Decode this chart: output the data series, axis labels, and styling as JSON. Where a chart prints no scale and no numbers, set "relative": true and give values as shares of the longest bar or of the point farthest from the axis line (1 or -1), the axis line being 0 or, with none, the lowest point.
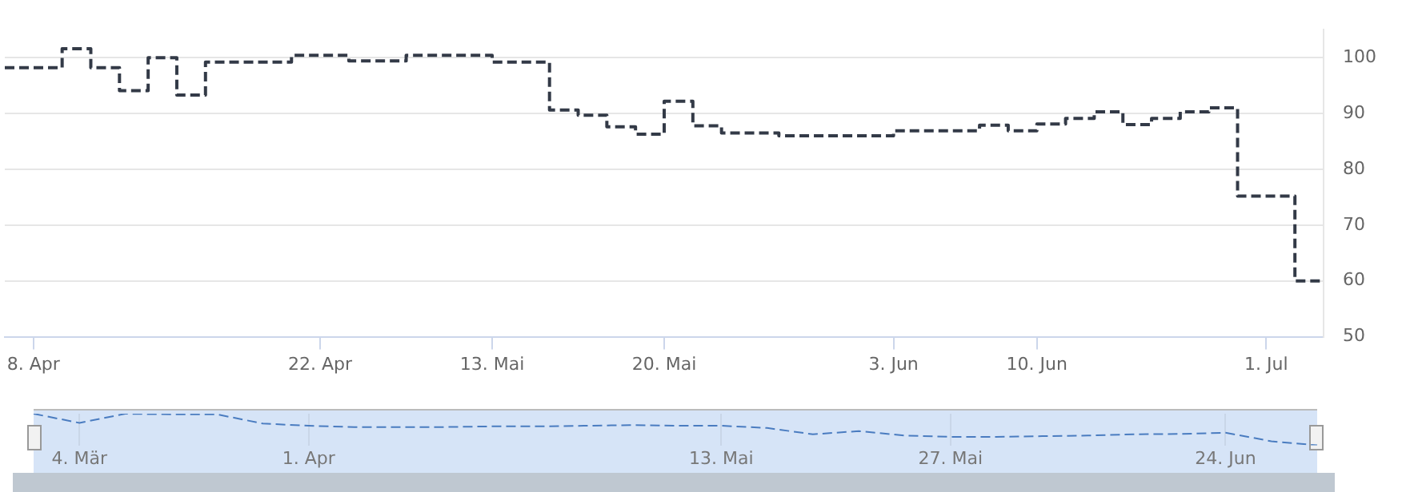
{
  "chart_data": [
    {
      "type": "step",
      "categories": [
        null,
        "8. Apr",
        null,
        null,
        null,
        null,
        null,
        null,
        null,
        null,
        null,
        "22. Apr",
        null,
        null,
        null,
        null,
        null,
        "13. Mai",
        null,
        null,
        null,
        null,
        null,
        "20. Mai",
        null,
        null,
        null,
        null,
        null,
        null,
        null,
        "3. Jun",
        null,
        null,
        null,
        null,
        "10. Jun",
        null,
        null,
        null,
        null,
        null,
        null,
        null,
        "1. Jul",
        null,
        null
      ],
      "series": [
        {
          "color": "#333a47",
          "values": [
            98.2,
            98.2,
            98.2,
            101.6,
            98.2,
            94.1,
            100,
            93.3,
            99.2,
            99.2,
            99.2,
            100.4,
            100.4,
            99.4,
            99.4,
            100.4,
            100.4,
            100.4,
            99.2,
            99.2,
            90.6,
            89.7,
            87.6,
            86.3,
            92.2,
            87.8,
            86.5,
            86.5,
            86,
            86,
            86,
            86,
            86.9,
            86.9,
            86.9,
            87.9,
            86.9,
            88.1,
            89.1,
            90.3,
            88,
            89.1,
            90.3,
            91,
            75.2,
            75.2,
            60
          ]
        }
      ],
      "ylim": [
        50,
        105
      ],
      "yticks": [
        50,
        60,
        70,
        80,
        90,
        100
      ],
      "grid": "y",
      "legend": false,
      "line_style": "dashed",
      "marker": "none"
    },
    {
      "type": "line",
      "relative": true,
      "categories": [
        null,
        "4. Mär",
        null,
        null,
        null,
        null,
        "1. Apr",
        null,
        null,
        null,
        null,
        null,
        null,
        null,
        null,
        "13. Mai",
        null,
        null,
        null,
        null,
        "27. Mai",
        null,
        null,
        null,
        null,
        null,
        "24. Jun",
        null,
        null
      ],
      "series": [
        {
          "color": "#4a7cc0",
          "values": [
            1,
            0.71,
            1,
            0.98,
            0.98,
            0.69,
            0.62,
            0.58,
            0.58,
            0.58,
            0.6,
            0.6,
            0.62,
            0.64,
            0.62,
            0.62,
            0.55,
            0.35,
            0.45,
            0.31,
            0.27,
            0.27,
            0.29,
            0.31,
            0.35,
            0.36,
            0.4,
            0.13,
            0
          ]
        }
      ],
      "grid": "x",
      "legend": false,
      "line_style": "dashed",
      "marker": "none",
      "tick_labels": "x"
    }
  ]
}
